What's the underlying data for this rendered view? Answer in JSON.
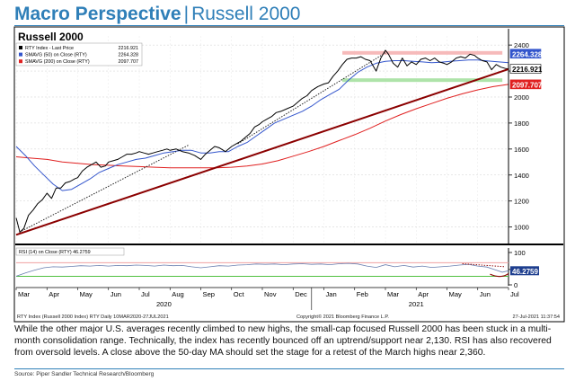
{
  "header": {
    "title": "Macro Perspective",
    "separator": "|",
    "subtitle": "Russell 2000"
  },
  "chart_data": {
    "type": "line",
    "title": "Russell 2000",
    "x_months": [
      "Mar",
      "Apr",
      "May",
      "Jun",
      "Jul",
      "Aug",
      "Sep",
      "Oct",
      "Nov",
      "Dec",
      "Jan",
      "Feb",
      "Mar",
      "Apr",
      "May",
      "Jun",
      "Jul"
    ],
    "year_labels": [
      "2020",
      "2021"
    ],
    "price_axis": {
      "ylim": [
        880,
        2470
      ],
      "ticks": [
        1000,
        1200,
        1400,
        1600,
        1800,
        2000,
        2200,
        2400
      ]
    },
    "legend": [
      {
        "label": "RTY Index - Last Price",
        "value": "2216.921",
        "color": "#000000"
      },
      {
        "label": "SMAVG (50)  on Close (RTY)",
        "value": "2264.328",
        "color": "#3355cc"
      },
      {
        "label": "SMAVG (200)  on Close (RTY)",
        "value": "2097.707",
        "color": "#e02020"
      }
    ],
    "last_values": {
      "price": "2216.921",
      "sma50": "2264.328",
      "sma200": "2097.707"
    },
    "series": [
      {
        "name": "RTY Index - Last Price",
        "color": "#000000",
        "values": [
          [
            0,
            1070
          ],
          [
            0.12,
            960
          ],
          [
            0.25,
            990
          ],
          [
            0.4,
            1090
          ],
          [
            0.55,
            1130
          ],
          [
            0.7,
            1180
          ],
          [
            0.85,
            1210
          ],
          [
            1.0,
            1260
          ],
          [
            1.15,
            1220
          ],
          [
            1.3,
            1300
          ],
          [
            1.45,
            1300
          ],
          [
            1.6,
            1340
          ],
          [
            1.75,
            1350
          ],
          [
            1.9,
            1370
          ],
          [
            2.0,
            1380
          ],
          [
            2.15,
            1430
          ],
          [
            2.3,
            1460
          ],
          [
            2.45,
            1480
          ],
          [
            2.6,
            1500
          ],
          [
            2.75,
            1460
          ],
          [
            2.9,
            1470
          ],
          [
            3.0,
            1500
          ],
          [
            3.15,
            1510
          ],
          [
            3.3,
            1520
          ],
          [
            3.45,
            1540
          ],
          [
            3.6,
            1560
          ],
          [
            3.75,
            1560
          ],
          [
            3.9,
            1570
          ],
          [
            4.0,
            1580
          ],
          [
            4.15,
            1570
          ],
          [
            4.3,
            1560
          ],
          [
            4.45,
            1570
          ],
          [
            4.6,
            1580
          ],
          [
            4.75,
            1590
          ],
          [
            4.9,
            1600
          ],
          [
            5.0,
            1590
          ],
          [
            5.2,
            1600
          ],
          [
            5.4,
            1580
          ],
          [
            5.6,
            1570
          ],
          [
            5.8,
            1550
          ],
          [
            6.0,
            1520
          ],
          [
            6.15,
            1560
          ],
          [
            6.3,
            1590
          ],
          [
            6.45,
            1620
          ],
          [
            6.6,
            1610
          ],
          [
            6.8,
            1580
          ],
          [
            7.0,
            1620
          ],
          [
            7.15,
            1640
          ],
          [
            7.3,
            1660
          ],
          [
            7.45,
            1690
          ],
          [
            7.6,
            1720
          ],
          [
            7.75,
            1770
          ],
          [
            7.9,
            1790
          ],
          [
            8.0,
            1810
          ],
          [
            8.15,
            1830
          ],
          [
            8.3,
            1850
          ],
          [
            8.45,
            1880
          ],
          [
            8.6,
            1890
          ],
          [
            8.8,
            1910
          ],
          [
            9.0,
            1930
          ],
          [
            9.15,
            1960
          ],
          [
            9.3,
            1990
          ],
          [
            9.45,
            2010
          ],
          [
            9.6,
            2050
          ],
          [
            9.8,
            2080
          ],
          [
            10.0,
            2100
          ],
          [
            10.15,
            2110
          ],
          [
            10.3,
            2160
          ],
          [
            10.45,
            2200
          ],
          [
            10.6,
            2250
          ],
          [
            10.75,
            2290
          ],
          [
            10.9,
            2300
          ],
          [
            11.05,
            2300
          ],
          [
            11.2,
            2310
          ],
          [
            11.35,
            2290
          ],
          [
            11.5,
            2280
          ],
          [
            11.7,
            2200
          ],
          [
            11.85,
            2300
          ],
          [
            12.0,
            2360
          ],
          [
            12.1,
            2330
          ],
          [
            12.25,
            2260
          ],
          [
            12.4,
            2230
          ],
          [
            12.55,
            2300
          ],
          [
            12.7,
            2240
          ],
          [
            12.85,
            2270
          ],
          [
            13.0,
            2250
          ],
          [
            13.15,
            2290
          ],
          [
            13.3,
            2300
          ],
          [
            13.45,
            2280
          ],
          [
            13.6,
            2300
          ],
          [
            13.75,
            2270
          ],
          [
            13.9,
            2260
          ],
          [
            14.0,
            2250
          ],
          [
            14.15,
            2270
          ],
          [
            14.3,
            2300
          ],
          [
            14.45,
            2310
          ],
          [
            14.6,
            2300
          ],
          [
            14.75,
            2330
          ],
          [
            14.9,
            2320
          ],
          [
            15.0,
            2300
          ],
          [
            15.15,
            2280
          ],
          [
            15.3,
            2270
          ],
          [
            15.45,
            2210
          ],
          [
            15.6,
            2250
          ],
          [
            15.75,
            2230
          ],
          [
            15.9,
            2220
          ],
          [
            16.0,
            2216.921
          ]
        ]
      },
      {
        "name": "SMAVG (50)",
        "color": "#3355cc",
        "values": [
          [
            0,
            1620
          ],
          [
            0.3,
            1550
          ],
          [
            0.6,
            1470
          ],
          [
            0.9,
            1400
          ],
          [
            1.2,
            1330
          ],
          [
            1.5,
            1280
          ],
          [
            1.8,
            1290
          ],
          [
            2.1,
            1330
          ],
          [
            2.4,
            1370
          ],
          [
            2.7,
            1420
          ],
          [
            3.0,
            1450
          ],
          [
            3.3,
            1480
          ],
          [
            3.6,
            1500
          ],
          [
            3.9,
            1520
          ],
          [
            4.2,
            1530
          ],
          [
            4.5,
            1550
          ],
          [
            4.8,
            1570
          ],
          [
            5.1,
            1580
          ],
          [
            5.4,
            1590
          ],
          [
            5.7,
            1590
          ],
          [
            6.0,
            1570
          ],
          [
            6.3,
            1570
          ],
          [
            6.6,
            1580
          ],
          [
            6.9,
            1580
          ],
          [
            7.2,
            1620
          ],
          [
            7.5,
            1650
          ],
          [
            7.8,
            1700
          ],
          [
            8.1,
            1750
          ],
          [
            8.4,
            1800
          ],
          [
            8.7,
            1830
          ],
          [
            9.0,
            1860
          ],
          [
            9.3,
            1890
          ],
          [
            9.6,
            1930
          ],
          [
            9.9,
            1980
          ],
          [
            10.2,
            2020
          ],
          [
            10.5,
            2060
          ],
          [
            10.8,
            2130
          ],
          [
            11.1,
            2190
          ],
          [
            11.4,
            2230
          ],
          [
            11.7,
            2260
          ],
          [
            12.0,
            2275
          ],
          [
            12.3,
            2280
          ],
          [
            12.6,
            2280
          ],
          [
            12.9,
            2275
          ],
          [
            13.2,
            2270
          ],
          [
            13.5,
            2265
          ],
          [
            13.8,
            2268
          ],
          [
            14.1,
            2275
          ],
          [
            14.4,
            2280
          ],
          [
            14.7,
            2285
          ],
          [
            15.0,
            2285
          ],
          [
            15.3,
            2278
          ],
          [
            15.6,
            2272
          ],
          [
            16.0,
            2264.328
          ]
        ]
      },
      {
        "name": "SMAVG (200)",
        "color": "#e02020",
        "values": [
          [
            0,
            1540
          ],
          [
            0.5,
            1530
          ],
          [
            1.0,
            1520
          ],
          [
            1.5,
            1500
          ],
          [
            2.0,
            1490
          ],
          [
            2.5,
            1480
          ],
          [
            3.0,
            1475
          ],
          [
            3.5,
            1470
          ],
          [
            4.0,
            1465
          ],
          [
            4.5,
            1460
          ],
          [
            5.0,
            1455
          ],
          [
            5.5,
            1455
          ],
          [
            6.0,
            1455
          ],
          [
            6.5,
            1455
          ],
          [
            7.0,
            1460
          ],
          [
            7.5,
            1470
          ],
          [
            8.0,
            1485
          ],
          [
            8.5,
            1510
          ],
          [
            9.0,
            1545
          ],
          [
            9.5,
            1580
          ],
          [
            10.0,
            1620
          ],
          [
            10.5,
            1665
          ],
          [
            11.0,
            1710
          ],
          [
            11.5,
            1760
          ],
          [
            12.0,
            1815
          ],
          [
            12.5,
            1865
          ],
          [
            13.0,
            1910
          ],
          [
            13.5,
            1950
          ],
          [
            14.0,
            1990
          ],
          [
            14.5,
            2025
          ],
          [
            15.0,
            2055
          ],
          [
            15.5,
            2080
          ],
          [
            16.0,
            2097.707
          ]
        ]
      }
    ],
    "annotations": {
      "uptrend_line": {
        "color": "#8b0000",
        "from": [
          0,
          940
        ],
        "to": [
          16,
          2215
        ]
      },
      "dotted_trend_1": {
        "from": [
          0.1,
          960
        ],
        "to": [
          5.6,
          1630
        ]
      },
      "dotted_trend_2": {
        "from": [
          7.2,
          1640
        ],
        "to": [
          12.0,
          2340
        ]
      },
      "resistance_band": {
        "color": "#f5b3b3",
        "y": 2340,
        "x_from": 10.6,
        "x_to": 15.8
      },
      "support_band": {
        "color": "#a5e0a0",
        "y": 2130,
        "x_from": 10.6,
        "x_to": 15.8
      }
    },
    "rsi": {
      "label": "RSI (14)  on Close (RTY) 46.2759",
      "last": "46.2759",
      "ylim": [
        10,
        100
      ],
      "ticks": [
        0,
        50,
        100
      ],
      "overbought": 70,
      "oversold": 30,
      "values": [
        [
          0,
          30
        ],
        [
          0.3,
          40
        ],
        [
          0.6,
          48
        ],
        [
          0.9,
          55
        ],
        [
          1.2,
          58
        ],
        [
          1.5,
          57
        ],
        [
          1.8,
          59
        ],
        [
          2.1,
          61
        ],
        [
          2.4,
          60
        ],
        [
          2.7,
          62
        ],
        [
          3.0,
          60
        ],
        [
          3.3,
          62
        ],
        [
          3.6,
          61
        ],
        [
          3.9,
          63
        ],
        [
          4.2,
          62
        ],
        [
          4.5,
          60
        ],
        [
          4.8,
          63
        ],
        [
          5.1,
          61
        ],
        [
          5.4,
          62
        ],
        [
          5.7,
          58
        ],
        [
          6.0,
          55
        ],
        [
          6.3,
          58
        ],
        [
          6.6,
          61
        ],
        [
          6.9,
          60
        ],
        [
          7.2,
          63
        ],
        [
          7.5,
          64
        ],
        [
          7.8,
          66
        ],
        [
          8.1,
          65
        ],
        [
          8.4,
          66
        ],
        [
          8.7,
          64
        ],
        [
          9.0,
          66
        ],
        [
          9.3,
          67
        ],
        [
          9.6,
          65
        ],
        [
          9.9,
          66
        ],
        [
          10.2,
          64
        ],
        [
          10.5,
          67
        ],
        [
          10.8,
          68
        ],
        [
          11.1,
          66
        ],
        [
          11.4,
          60
        ],
        [
          11.7,
          56
        ],
        [
          12.0,
          64
        ],
        [
          12.3,
          58
        ],
        [
          12.6,
          62
        ],
        [
          12.9,
          57
        ],
        [
          13.2,
          60
        ],
        [
          13.5,
          56
        ],
        [
          13.8,
          58
        ],
        [
          14.1,
          60
        ],
        [
          14.4,
          63
        ],
        [
          14.7,
          65
        ],
        [
          15.0,
          60
        ],
        [
          15.3,
          57
        ],
        [
          15.6,
          48
        ],
        [
          15.8,
          42
        ],
        [
          16.0,
          46.28
        ]
      ]
    },
    "footer_left": "RTY Index (Russell 2000 Index) RTY Daily  10MAR2020-27JUL2021",
    "footer_center": "Copyright© 2021 Bloomberg Finance L.P.",
    "footer_right": "27-Jul-2021 11:37:54"
  },
  "caption": "While the other major U.S. averages recently climbed to new highs, the small-cap focused Russell 2000 has been stuck in a multi-month consolidation range. Technically, the index has recently bounced off an uptrend/support near 2,130. RSI has also recovered from oversold levels. A close above the 50-day MA should set the stage for a retest of the March highs near 2,360.",
  "source": "Source: Piper Sandler Technical Research/Bloomberg"
}
